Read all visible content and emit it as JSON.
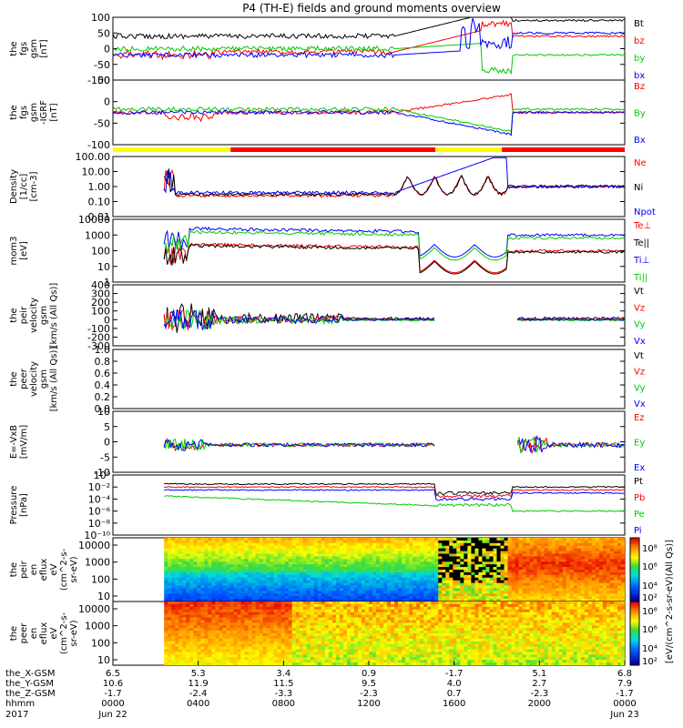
{
  "title": "P4 (TH-E) fields and ground moments overview",
  "colors": {
    "black": "#000000",
    "red": "#ff0000",
    "green": "#00cc00",
    "blue": "#0000ff",
    "yellow": "#ffff00"
  },
  "chart_data": [
    {
      "type": "line",
      "ylabel_lines": [
        "the",
        "fgs",
        "gsm",
        "[nT]"
      ],
      "ticks": [
        "100",
        "50",
        "0",
        "-50",
        "-100"
      ],
      "ylim": [
        -100,
        100
      ],
      "legend": [
        {
          "name": "Bt",
          "color": "#000000"
        },
        {
          "name": "bz",
          "color": "#ff0000"
        },
        {
          "name": "by",
          "color": "#00cc00"
        },
        {
          "name": "bx",
          "color": "#0000ff"
        }
      ]
    },
    {
      "type": "line",
      "ylabel_lines": [
        "the",
        "fgs",
        "gsm",
        "-IGRF",
        "[nT]"
      ],
      "ticks": [
        "50",
        "0",
        "-50",
        "-100"
      ],
      "ylim": [
        -120,
        100
      ],
      "legend": [
        {
          "name": "Bz",
          "color": "#ff0000"
        },
        {
          "name": "By",
          "color": "#00cc00"
        },
        {
          "name": "Bx",
          "color": "#0000ff"
        }
      ]
    },
    {
      "type": "line",
      "ylabel_lines": [
        "Density",
        "[1/cc]",
        "[cm-3]"
      ],
      "ticks": [
        "100.00",
        "10.00",
        "1.00",
        "0.10",
        "0.01"
      ],
      "ylim": [
        0.005,
        200
      ],
      "log": true,
      "legend": [
        {
          "name": "Ne",
          "color": "#ff0000"
        },
        {
          "name": "Ni",
          "color": "#000000"
        },
        {
          "name": "Npot",
          "color": "#0000ff"
        }
      ]
    },
    {
      "type": "line",
      "ylabel_lines": [
        "mom3",
        "[eV]"
      ],
      "ticks": [
        "10000",
        "1000",
        "100",
        "10",
        "1"
      ],
      "ylim": [
        1,
        10000
      ],
      "log": true,
      "legend": [
        {
          "name": "Te⊥",
          "color": "#ff0000"
        },
        {
          "name": "Te||",
          "color": "#000000"
        },
        {
          "name": "Ti⊥",
          "color": "#0000ff"
        },
        {
          "name": "Ti||",
          "color": "#00cc00"
        }
      ]
    },
    {
      "type": "line",
      "ylabel_lines": [
        "the",
        "peir",
        "velocity",
        "gsm",
        "[km/s (All Qs)]"
      ],
      "ticks": [
        "400",
        "300",
        "200",
        "100",
        "0",
        "-100",
        "-200",
        "-300"
      ],
      "ylim": [
        -300,
        400
      ],
      "legend": [
        {
          "name": "Vt",
          "color": "#000000"
        },
        {
          "name": "Vz",
          "color": "#ff0000"
        },
        {
          "name": "Vy",
          "color": "#00cc00"
        },
        {
          "name": "Vx",
          "color": "#0000ff"
        }
      ]
    },
    {
      "type": "line",
      "ylabel_lines": [
        "the",
        "peer",
        "velocity",
        "gsm",
        "[km/s (All Qs)]"
      ],
      "ticks": [
        "1.0",
        "0.8",
        "0.6",
        "0.4",
        "0.2",
        "0.0"
      ],
      "ylim": [
        0,
        1
      ],
      "legend": [
        {
          "name": "Vt",
          "color": "#000000"
        },
        {
          "name": "Vz",
          "color": "#ff0000"
        },
        {
          "name": "Vy",
          "color": "#00cc00"
        },
        {
          "name": "Vx",
          "color": "#0000ff"
        }
      ]
    },
    {
      "type": "line",
      "ylabel_lines": [
        "E=-VxB",
        "[mV/m]"
      ],
      "ticks": [
        "10",
        "5",
        "0",
        "-5",
        "-10"
      ],
      "ylim": [
        -12,
        12
      ],
      "legend": [
        {
          "name": "Ez",
          "color": "#ff0000"
        },
        {
          "name": "Ey",
          "color": "#00cc00"
        },
        {
          "name": "Ex",
          "color": "#0000ff"
        }
      ]
    },
    {
      "type": "line",
      "ylabel_lines": [
        "Pressure",
        "[nPa]"
      ],
      "ticks": [
        "10⁰",
        "10⁻²",
        "10⁻⁴",
        "10⁻⁶",
        "10⁻⁸",
        "10⁻¹⁰"
      ],
      "ylim": [
        -10,
        1
      ],
      "log": true,
      "legend": [
        {
          "name": "Pt",
          "color": "#000000"
        },
        {
          "name": "Pb",
          "color": "#ff0000"
        },
        {
          "name": "Pe",
          "color": "#00cc00"
        },
        {
          "name": "Pi",
          "color": "#0000ff"
        }
      ]
    },
    {
      "type": "heatmap",
      "ylabel_lines": [
        "the",
        "peir",
        "en",
        "eflux",
        "eV",
        "(cm^2-s-",
        "sr-eV)"
      ],
      "ticks": [
        "10000",
        "1000",
        "100",
        "10"
      ],
      "ylim": [
        5,
        20000
      ],
      "log": true
    },
    {
      "type": "heatmap",
      "ylabel_lines": [
        "the",
        "peer",
        "en",
        "eflux",
        "eV",
        "(cm^2-s-",
        "sr-eV)"
      ],
      "ticks": [
        "10000",
        "1000",
        "100",
        "10"
      ],
      "ylim": [
        5,
        20000
      ],
      "log": true
    }
  ],
  "colorbar": {
    "ticks": [
      "10⁸",
      "10⁶",
      "10⁴",
      "10²",
      "10⁸",
      "10⁶",
      "10⁴",
      "10²"
    ],
    "label": "[eV/(cm^2-s-sr-eV)]",
    "label2": "[eV/(cm^2-s-sr-eV)(All Qs)]"
  },
  "xaxis": {
    "row_labels": [
      "the_X-GSM",
      "the_Y-GSM",
      "the_Z-GSM",
      "hhmm",
      "2017"
    ],
    "columns": [
      {
        "x": "6.5",
        "y": "10.6",
        "z": "-1.7",
        "hhmm": "0000",
        "date": "Jun 22"
      },
      {
        "x": "5.3",
        "y": "11.9",
        "z": "-2.4",
        "hhmm": "0400",
        "date": ""
      },
      {
        "x": "3.4",
        "y": "11.5",
        "z": "-3.3",
        "hhmm": "0800",
        "date": ""
      },
      {
        "x": "0.9",
        "y": "9.5",
        "z": "-2.3",
        "hhmm": "1200",
        "date": ""
      },
      {
        "x": "-1.7",
        "y": "4.0",
        "z": "0.7",
        "hhmm": "1600",
        "date": ""
      },
      {
        "x": "5.1",
        "y": "2.7",
        "z": "-2.3",
        "hhmm": "2000",
        "date": ""
      },
      {
        "x": "6.8",
        "y": "7.9",
        "z": "-1.7",
        "hhmm": "0000",
        "date": "Jun 23"
      }
    ]
  },
  "mode_bar": [
    {
      "from": 0,
      "to": 0.23,
      "color": "#ffff00"
    },
    {
      "from": 0.23,
      "to": 0.63,
      "color": "#ff0000"
    },
    {
      "from": 0.63,
      "to": 0.76,
      "color": "#ffff00"
    },
    {
      "from": 0.76,
      "to": 1.0,
      "color": "#ff0000"
    }
  ]
}
